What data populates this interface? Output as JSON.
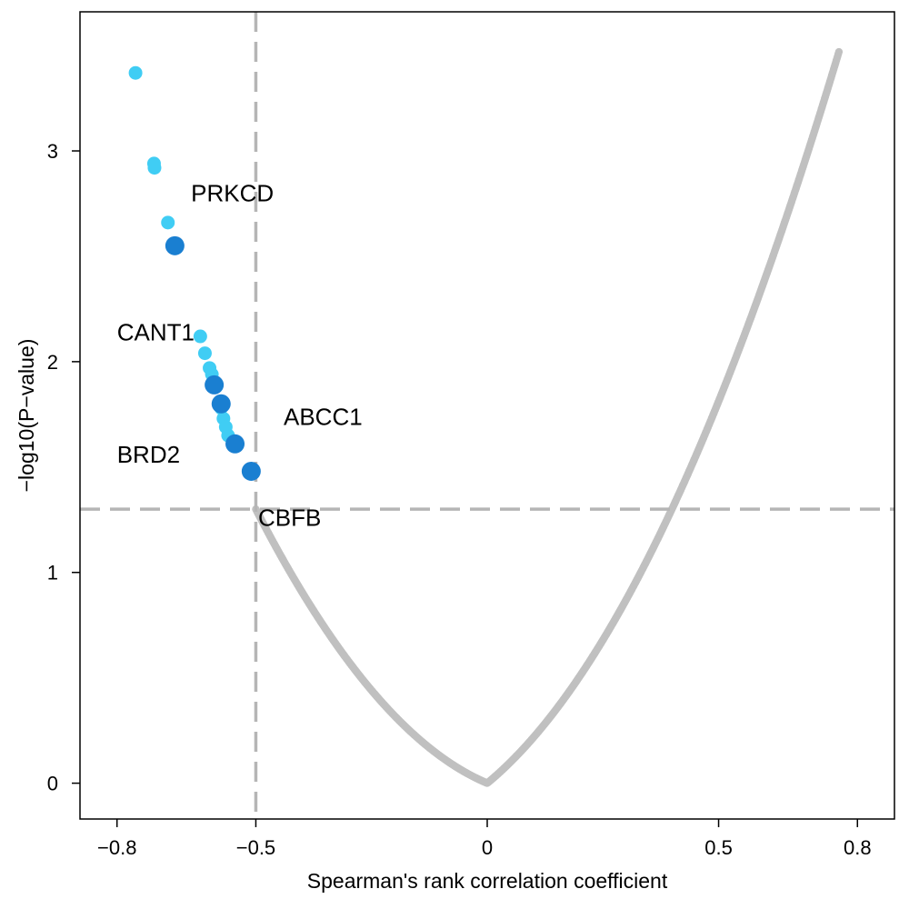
{
  "chart_data": {
    "type": "scatter",
    "title": "",
    "xlabel": "Spearman's rank correlation coefficient",
    "ylabel": "−log10(P−value)",
    "xlim": [
      -0.88,
      0.88
    ],
    "ylim": [
      -0.17,
      3.66
    ],
    "x_ticks": [
      {
        "value": -0.8,
        "label": "−0.8"
      },
      {
        "value": -0.5,
        "label": "−0.5"
      },
      {
        "value": 0,
        "label": "0"
      },
      {
        "value": 0.5,
        "label": "0.5"
      },
      {
        "value": 0.8,
        "label": "0.8"
      }
    ],
    "y_ticks": [
      {
        "value": 0,
        "label": "0"
      },
      {
        "value": 1,
        "label": "1"
      },
      {
        "value": 2,
        "label": "2"
      },
      {
        "value": 3,
        "label": "3"
      }
    ],
    "grid": false,
    "legend": "none",
    "threshold_lines": {
      "x": -0.5,
      "y": 1.3
    },
    "colors": {
      "background_points": "#c0c0c0",
      "significant_points": "#40cdf4",
      "highlighted_points": "#1a7fd1",
      "threshold_line": "#b5b5b5"
    },
    "curve_note": "",
    "curve_x_range": [
      -0.5,
      0.76
    ],
    "significant_points": [
      {
        "x": -0.76,
        "y": 3.37
      },
      {
        "x": -0.72,
        "y": 2.94
      },
      {
        "x": -0.719,
        "y": 2.92
      },
      {
        "x": -0.69,
        "y": 2.66
      },
      {
        "x": -0.62,
        "y": 2.12
      },
      {
        "x": -0.61,
        "y": 2.04
      },
      {
        "x": -0.6,
        "y": 1.97
      },
      {
        "x": -0.595,
        "y": 1.94
      },
      {
        "x": -0.575,
        "y": 1.78
      },
      {
        "x": -0.57,
        "y": 1.73
      },
      {
        "x": -0.565,
        "y": 1.69
      },
      {
        "x": -0.56,
        "y": 1.65
      }
    ],
    "highlighted_points": [
      {
        "x": -0.675,
        "y": 2.55
      },
      {
        "x": -0.59,
        "y": 1.89
      },
      {
        "x": -0.575,
        "y": 1.8
      },
      {
        "x": -0.545,
        "y": 1.61
      },
      {
        "x": -0.51,
        "y": 1.48
      }
    ],
    "annotations": [
      {
        "text": "PRKCD",
        "x": -0.64,
        "y": 2.76
      },
      {
        "text": "CANT1",
        "x": -0.8,
        "y": 2.1
      },
      {
        "text": "ABCC1",
        "x": -0.44,
        "y": 1.7
      },
      {
        "text": "BRD2",
        "x": -0.8,
        "y": 1.52
      },
      {
        "text": "CBFB",
        "x": -0.495,
        "y": 1.22
      }
    ]
  }
}
